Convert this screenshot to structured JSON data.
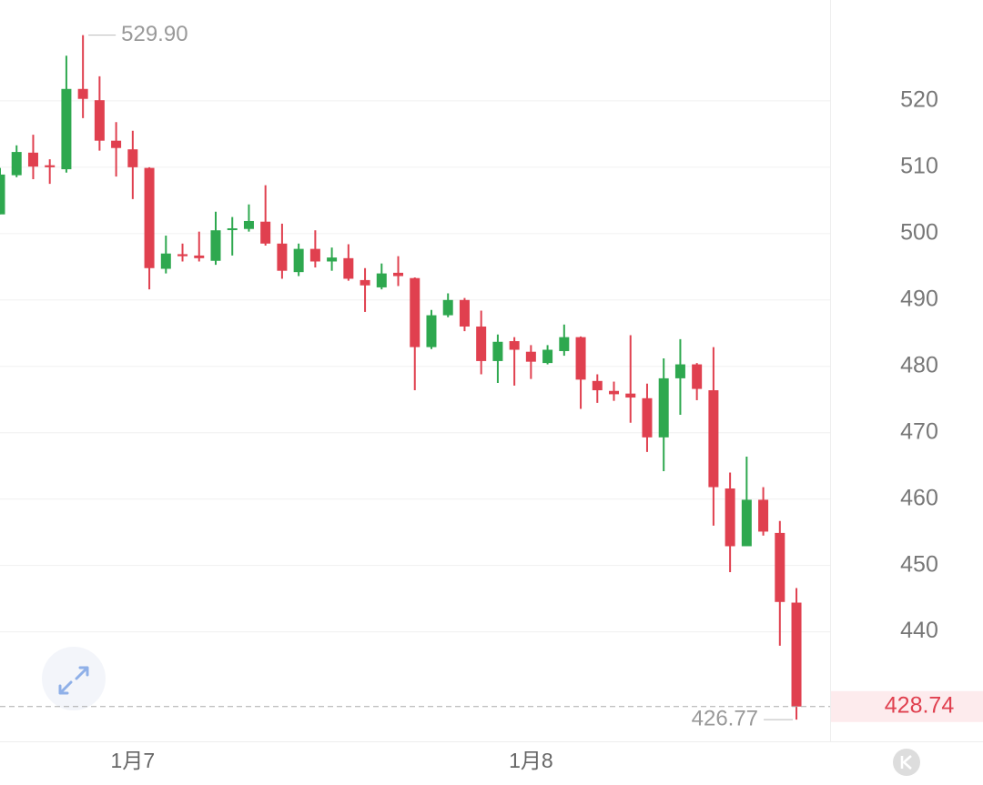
{
  "chart_data": {
    "type": "candlestick",
    "up_color": "#2ea84f",
    "down_color": "#e0404f",
    "open": [
      502.9,
      508.8,
      512.2,
      510.3,
      509.7,
      521.8,
      520.1,
      514.0,
      512.7,
      509.9,
      494.7,
      496.9,
      496.7,
      495.9,
      500.6,
      500.7,
      501.8,
      498.5,
      494.2,
      497.7,
      495.8,
      496.3,
      493.0,
      491.9,
      494.1,
      493.3,
      482.9,
      487.7,
      490.0,
      486.0,
      480.8,
      483.8,
      482.2,
      480.5,
      482.3,
      484.4,
      477.8,
      476.3,
      475.9,
      475.2,
      469.3,
      478.2,
      480.3,
      476.4,
      461.6,
      452.9,
      459.9,
      454.9,
      444.4
    ],
    "high": [
      509.9,
      513.3,
      514.9,
      511.2,
      526.8,
      529.9,
      523.7,
      516.8,
      515.5,
      510.0,
      499.7,
      498.5,
      500.3,
      503.3,
      502.5,
      504.4,
      507.3,
      501.5,
      498.5,
      500.5,
      497.9,
      498.4,
      494.8,
      495.5,
      496.6,
      493.4,
      488.5,
      491.0,
      490.3,
      488.4,
      484.8,
      484.4,
      483.2,
      483.2,
      486.3,
      484.5,
      478.8,
      477.7,
      484.7,
      477.4,
      481.2,
      484.1,
      480.5,
      482.9,
      464.0,
      466.4,
      461.8,
      456.7,
      446.6
    ],
    "low": [
      502.9,
      508.5,
      508.2,
      507.5,
      509.2,
      517.4,
      512.5,
      508.6,
      505.2,
      491.6,
      494.0,
      495.8,
      495.8,
      495.3,
      496.7,
      500.3,
      498.2,
      493.2,
      493.6,
      494.9,
      494.4,
      492.9,
      488.2,
      491.6,
      492.1,
      476.4,
      482.6,
      487.4,
      485.3,
      478.8,
      477.5,
      477.1,
      478.1,
      480.3,
      481.6,
      473.6,
      474.5,
      474.8,
      471.5,
      467.1,
      464.2,
      472.7,
      474.9,
      456.0,
      449.0,
      452.9,
      454.5,
      437.9,
      426.77
    ],
    "close": [
      508.9,
      512.3,
      510.1,
      510.0,
      521.8,
      520.3,
      514.0,
      512.9,
      510.0,
      494.8,
      497.0,
      496.6,
      496.3,
      500.5,
      500.8,
      501.9,
      498.5,
      494.4,
      497.7,
      495.8,
      496.4,
      493.2,
      492.2,
      494.0,
      493.6,
      482.9,
      487.7,
      490.0,
      486.0,
      480.8,
      483.7,
      482.5,
      480.7,
      482.5,
      484.4,
      478.0,
      476.4,
      475.8,
      475.3,
      469.3,
      478.2,
      480.3,
      476.6,
      461.8,
      452.9,
      459.9,
      455.1,
      444.5,
      428.74
    ],
    "ylim": [
      423.5,
      535.2
    ],
    "yticks": [
      440,
      450,
      460,
      470,
      480,
      490,
      500,
      510,
      520
    ],
    "xlim": [
      0,
      50
    ],
    "xticks": [
      {
        "value": 8,
        "label": "1月7"
      },
      {
        "value": 32,
        "label": "1月8"
      }
    ],
    "grid": true,
    "high_label": {
      "value": 529.9,
      "label": "529.90"
    },
    "low_label": {
      "value": 426.77,
      "label": "426.77"
    },
    "last_price": {
      "value": 428.74,
      "label": "428.74"
    }
  }
}
